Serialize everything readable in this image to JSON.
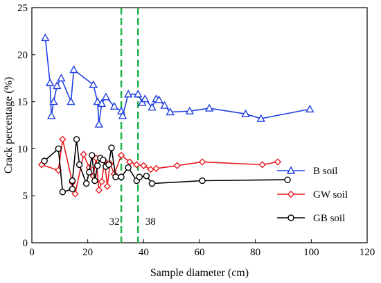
{
  "chart_data": {
    "type": "line",
    "xlabel": "Sample diameter (cm)",
    "ylabel": "Crack percentage  (%)",
    "xlim": [
      0,
      120
    ],
    "ylim": [
      0,
      25
    ],
    "xticks": [
      0,
      20,
      40,
      60,
      80,
      100,
      120
    ],
    "yticks": [
      0,
      5,
      10,
      15,
      20,
      25
    ],
    "grid": false,
    "legend_position": "lower-right",
    "vlines": [
      {
        "x": 32,
        "label": "32",
        "color": "#1fb24a",
        "style": "dashed"
      },
      {
        "x": 38,
        "label": "38",
        "color": "#1fb24a",
        "style": "dashed"
      }
    ],
    "series": [
      {
        "name": "B soil",
        "color": "#1f3fe0",
        "marker": "triangle",
        "points": [
          [
            4.8,
            21.8
          ],
          [
            6.5,
            17.0
          ],
          [
            7.0,
            13.5
          ],
          [
            7.8,
            15.0
          ],
          [
            9.0,
            16.7
          ],
          [
            10.5,
            17.5
          ],
          [
            14.0,
            15.0
          ],
          [
            15.0,
            18.4
          ],
          [
            22.0,
            16.8
          ],
          [
            23.5,
            15.0
          ],
          [
            24.0,
            12.6
          ],
          [
            25.0,
            14.8
          ],
          [
            26.5,
            15.5
          ],
          [
            29.5,
            14.5
          ],
          [
            32.0,
            14.0
          ],
          [
            32.5,
            13.5
          ],
          [
            34.5,
            15.8
          ],
          [
            38.0,
            15.8
          ],
          [
            39.5,
            14.9
          ],
          [
            40.5,
            15.3
          ],
          [
            43.0,
            14.4
          ],
          [
            44.5,
            15.3
          ],
          [
            45.5,
            15.2
          ],
          [
            47.5,
            14.6
          ],
          [
            49.5,
            13.9
          ],
          [
            56.5,
            14.0
          ],
          [
            63.5,
            14.3
          ],
          [
            76.5,
            13.7
          ],
          [
            82.0,
            13.2
          ],
          [
            99.5,
            14.2
          ]
        ]
      },
      {
        "name": "GW soil",
        "color": "#e8191f",
        "marker": "diamond",
        "points": [
          [
            3.5,
            8.3
          ],
          [
            9.5,
            7.7
          ],
          [
            11.0,
            11.0
          ],
          [
            14.5,
            6.4
          ],
          [
            15.5,
            5.2
          ],
          [
            18.5,
            9.4
          ],
          [
            20.5,
            8.0
          ],
          [
            22.0,
            7.1
          ],
          [
            23.0,
            9.0
          ],
          [
            24.0,
            5.6
          ],
          [
            25.0,
            6.5
          ],
          [
            26.0,
            8.7
          ],
          [
            27.0,
            6.0
          ],
          [
            28.0,
            8.4
          ],
          [
            29.5,
            7.3
          ],
          [
            32.0,
            9.3
          ],
          [
            35.0,
            8.6
          ],
          [
            37.5,
            8.3
          ],
          [
            40.0,
            8.2
          ],
          [
            42.5,
            7.8
          ],
          [
            44.5,
            7.9
          ],
          [
            52.0,
            8.2
          ],
          [
            61.0,
            8.6
          ],
          [
            82.5,
            8.3
          ],
          [
            88.0,
            8.6
          ]
        ]
      },
      {
        "name": "GB soil",
        "color": "#000000",
        "marker": "circle",
        "points": [
          [
            4.5,
            8.7
          ],
          [
            9.5,
            10.0
          ],
          [
            11.0,
            5.4
          ],
          [
            14.5,
            5.7
          ],
          [
            14.5,
            6.6
          ],
          [
            16.0,
            11.0
          ],
          [
            17.0,
            8.3
          ],
          [
            19.5,
            6.3
          ],
          [
            20.5,
            7.5
          ],
          [
            21.5,
            9.3
          ],
          [
            22.5,
            6.6
          ],
          [
            23.5,
            8.2
          ],
          [
            24.5,
            9.0
          ],
          [
            25.5,
            8.8
          ],
          [
            26.5,
            8.1
          ],
          [
            27.5,
            8.3
          ],
          [
            28.5,
            10.1
          ],
          [
            30.0,
            7.0
          ],
          [
            32.0,
            7.0
          ],
          [
            34.5,
            8.0
          ],
          [
            37.5,
            6.6
          ],
          [
            38.5,
            7.0
          ],
          [
            41.0,
            7.1
          ],
          [
            43.0,
            6.3
          ],
          [
            61.0,
            6.6
          ],
          [
            91.5,
            6.7
          ]
        ]
      }
    ]
  }
}
